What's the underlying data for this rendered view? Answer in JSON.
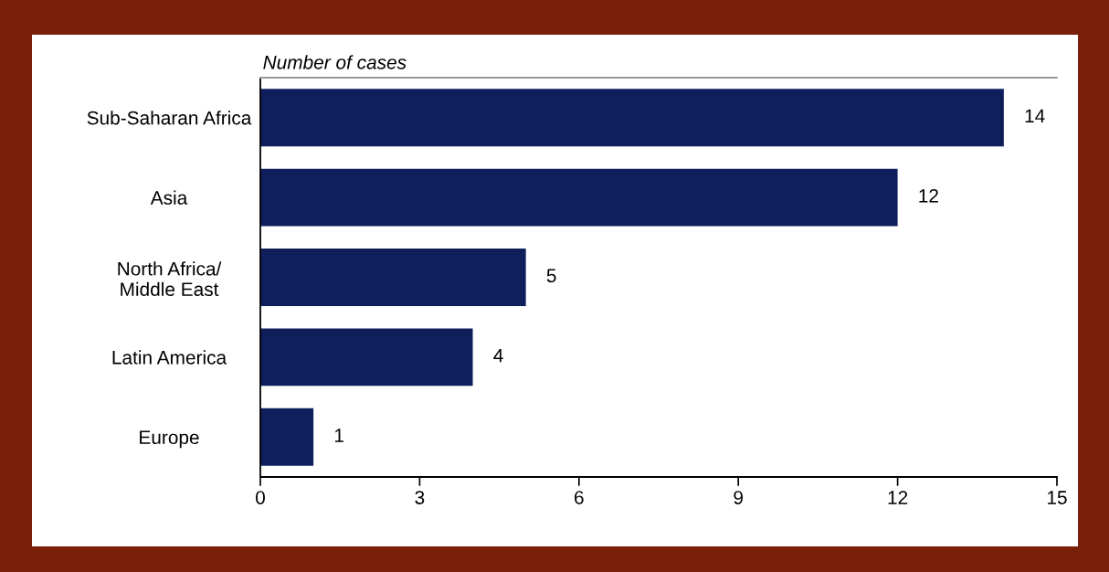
{
  "chart_data": {
    "type": "bar",
    "orientation": "horizontal",
    "xlabel": "Number of cases",
    "categories": [
      "Sub-Saharan Africa",
      "Asia",
      "North Africa/\nMiddle East",
      "Latin America",
      "Europe"
    ],
    "values": [
      14,
      12,
      5,
      4,
      1
    ],
    "color": "#0e1f5b",
    "xlim": [
      0,
      15
    ],
    "xticks": [
      0,
      3,
      6,
      9,
      12,
      15
    ],
    "grid": false,
    "data_labels": true
  }
}
